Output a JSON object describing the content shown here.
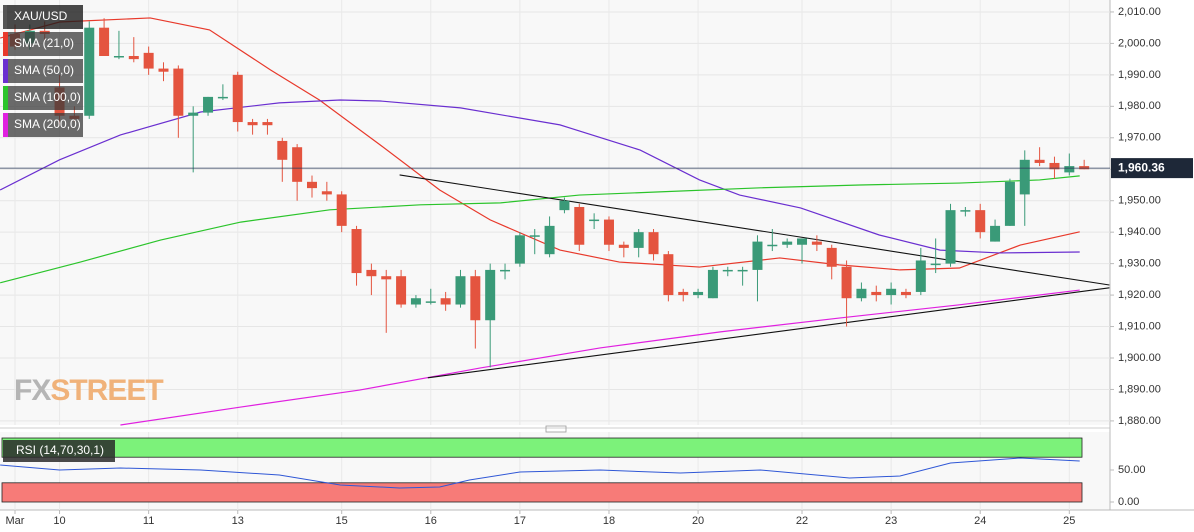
{
  "watermark": [
    "FX",
    "STREET"
  ],
  "chart_data": [
    {
      "type": "candlestick",
      "title": "XAU/USD",
      "x": [
        0,
        1,
        2,
        3,
        4,
        5,
        6,
        7,
        8,
        9,
        10,
        11,
        12,
        13,
        14,
        15,
        16,
        17,
        18,
        19,
        20,
        21,
        22,
        23,
        24,
        25,
        26,
        27,
        28,
        29,
        30,
        31,
        32,
        33,
        34,
        35,
        36,
        37,
        38,
        39,
        40,
        41,
        42,
        43,
        44,
        45,
        46,
        47,
        48,
        49,
        50,
        51,
        52,
        53,
        54,
        55,
        56,
        57,
        58,
        59,
        60,
        61,
        62,
        63,
        64,
        65,
        66,
        67,
        68,
        69,
        70,
        71,
        72
      ],
      "open": [
        2003,
        2000,
        2004,
        1986,
        1977,
        1977,
        2005,
        1996,
        1996,
        1997,
        1992,
        1992,
        1977,
        1978,
        1983,
        1990,
        1975,
        1975,
        1969,
        1967,
        1956,
        1953,
        1952,
        1941,
        1928,
        1926,
        1926,
        1917,
        1918,
        1919,
        1917,
        1926,
        1912,
        1928,
        1930,
        1939,
        1933,
        1947,
        1948,
        1944,
        1944,
        1936,
        1935,
        1940,
        1933,
        1921,
        1920,
        1919,
        1928,
        1928,
        1928,
        1936,
        1936,
        1936,
        1937,
        1935,
        1929,
        1919,
        1921,
        1920,
        1921,
        1921,
        1930,
        1930,
        1947,
        1947,
        1937,
        1942,
        1952,
        1963,
        1962,
        1959,
        1961
      ],
      "high": [
        2006,
        2006,
        2007,
        1990,
        1980,
        2007,
        2008,
        2004,
        2002,
        1999,
        1994,
        1993,
        1980,
        1983,
        1987,
        1991,
        1976,
        1976,
        1970,
        1968,
        1958,
        1956,
        1953,
        1942,
        1930,
        1928,
        1928,
        1920,
        1922,
        1921,
        1928,
        1928,
        1930,
        1930,
        1940,
        1941,
        1945,
        1951,
        1949,
        1946,
        1945,
        1937,
        1941,
        1941,
        1934,
        1922,
        1922,
        1929,
        1929,
        1929,
        1939,
        1941,
        1938,
        1938,
        1939,
        1936,
        1931,
        1924,
        1923,
        1924,
        1922,
        1935,
        1938,
        1949,
        1948,
        1949,
        1944,
        1957,
        1966,
        1967,
        1964,
        1965,
        1963
      ],
      "low": [
        1998,
        1998,
        2001,
        1974,
        1975,
        1976,
        1996,
        1995,
        1994,
        1990,
        1988,
        1970,
        1959,
        1977,
        1982,
        1972,
        1971,
        1971,
        1956,
        1950,
        1951,
        1950,
        1940,
        1923,
        1920,
        1908,
        1916,
        1916,
        1917,
        1915,
        1916,
        1903,
        1897,
        1925,
        1929,
        1933,
        1932,
        1946,
        1934,
        1941,
        1934,
        1932,
        1932,
        1931,
        1918,
        1918,
        1919,
        1919,
        1926,
        1923,
        1918,
        1934,
        1935,
        1930,
        1934,
        1925,
        1910,
        1918,
        1918,
        1917,
        1919,
        1920,
        1927,
        1929,
        1945,
        1938,
        1937,
        1942,
        1942,
        1961,
        1957,
        1958,
        1960
      ],
      "close": [
        1999,
        2004,
        2003,
        1977,
        1976,
        2005,
        1996,
        1996,
        1995,
        1992,
        1991,
        1977,
        1978,
        1983,
        1983,
        1975,
        1974,
        1974,
        1963,
        1956,
        1954,
        1952,
        1942,
        1927,
        1926,
        1925,
        1917,
        1919,
        1918,
        1917,
        1926,
        1912,
        1928,
        1928,
        1939,
        1939,
        1942,
        1950,
        1936,
        1944,
        1936,
        1935,
        1940,
        1933,
        1920,
        1920,
        1921,
        1928,
        1928,
        1928,
        1937,
        1936,
        1937,
        1938,
        1936,
        1929,
        1919,
        1922,
        1920,
        1922,
        1920,
        1931,
        1930,
        1947,
        1947,
        1940,
        1942,
        1956,
        1963,
        1962,
        1960,
        1961,
        1960
      ],
      "up_color": "#3a9a78",
      "down_color": "#e4543f",
      "series": [
        {
          "name": "SMA (21,0)",
          "color": "#e8392b",
          "x": [
            -1,
            3,
            9.1,
            13.1,
            17.2,
            20.5,
            24.6,
            28.6,
            32,
            36.7,
            40.7,
            46.1,
            51.5,
            55.5,
            59.6,
            63.6,
            67.7,
            71.7
          ],
          "values": [
            2001.7,
            2006.8,
            2008.1,
            2004.3,
            1991.6,
            1982.0,
            1967.7,
            1953.4,
            1943.9,
            1934.3,
            1930.5,
            1928.9,
            1931.8,
            1929.6,
            1928.0,
            1928.6,
            1935.9,
            1940.1
          ]
        },
        {
          "name": "SMA (50,0)",
          "color": "#6a2fd0",
          "x": [
            -1,
            3,
            7.1,
            12.5,
            17.8,
            21.9,
            24.6,
            30,
            36.7,
            42.1,
            46.1,
            48.8,
            52.9,
            58.2,
            62.3,
            66.3,
            71.7
          ],
          "values": [
            1953.4,
            1963.0,
            1970.9,
            1978.2,
            1981.1,
            1982.0,
            1981.7,
            1979.5,
            1974.1,
            1966.1,
            1956.6,
            1951.8,
            1947.7,
            1939.1,
            1934.3,
            1933.4,
            1933.7
          ]
        },
        {
          "name": "SMA (100,0)",
          "color": "#2bc42b",
          "x": [
            -1,
            4.4,
            9.8,
            15.2,
            21.2,
            27.3,
            32.7,
            38,
            43.4,
            50.2,
            56.9,
            63.6,
            69,
            71.7
          ],
          "values": [
            1923.9,
            1930.5,
            1937.5,
            1943.2,
            1947.1,
            1948.7,
            1949.3,
            1951.8,
            1952.8,
            1954.1,
            1955.0,
            1955.6,
            1956.6,
            1957.9
          ]
        },
        {
          "name": "SMA (200,0)",
          "color": "#e020e0",
          "x": [
            7.1,
            15.2,
            23.2,
            31.3,
            39.4,
            47.5,
            55.5,
            63.6,
            71.7
          ],
          "values": [
            1878.7,
            1884.4,
            1889.8,
            1896.8,
            1903.2,
            1908.3,
            1912.7,
            1916.9,
            1921.6
          ]
        }
      ],
      "trendlines": [
        {
          "color": "#111111",
          "x": [
            25.9,
            73.7
          ],
          "values": [
            1958.2,
            1923.2
          ]
        },
        {
          "color": "#111111",
          "x": [
            27.8,
            73.7
          ],
          "values": [
            1893.7,
            1922.3
          ]
        }
      ],
      "last_price": {
        "value": 1960.36,
        "label": "1,960.36"
      },
      "ylim": [
        1878.7,
        2013.8
      ],
      "yticks": [
        {
          "value": 1880,
          "label": "1,880.00"
        },
        {
          "value": 1890,
          "label": "1,890.00"
        },
        {
          "value": 1900,
          "label": "1,900.00"
        },
        {
          "value": 1910,
          "label": "1,910.00"
        },
        {
          "value": 1920,
          "label": "1,920.00"
        },
        {
          "value": 1930,
          "label": "1,930.00"
        },
        {
          "value": 1940,
          "label": "1,940.00"
        },
        {
          "value": 1950,
          "label": "1,950.00"
        },
        {
          "value": 1960,
          "label": "1,960.00"
        },
        {
          "value": 1970,
          "label": "1,970.00"
        },
        {
          "value": 1980,
          "label": "1,980.00"
        },
        {
          "value": 1990,
          "label": "1,990.00"
        },
        {
          "value": 2000,
          "label": "2,000.00"
        },
        {
          "value": 2010,
          "label": "2,010.00"
        }
      ],
      "xlim": [
        -1.01,
        73.74
      ],
      "xticks": [
        {
          "value": 0,
          "label": "Mar"
        },
        {
          "value": 3,
          "label": "10"
        },
        {
          "value": 9,
          "label": "11"
        },
        {
          "value": 15,
          "label": "13"
        },
        {
          "value": 22,
          "label": "15"
        },
        {
          "value": 28,
          "label": "16"
        },
        {
          "value": 34,
          "label": "17"
        },
        {
          "value": 40,
          "label": "18"
        },
        {
          "value": 46,
          "label": "20"
        },
        {
          "value": 53,
          "label": "22"
        },
        {
          "value": 59,
          "label": "23"
        },
        {
          "value": 65,
          "label": "24"
        },
        {
          "value": 71,
          "label": "25"
        }
      ],
      "grid": true
    },
    {
      "type": "line",
      "title": "RSI (14,70,30,1)",
      "series": [
        {
          "color": "#2f57d6",
          "x": [
            -1,
            3,
            7.1,
            12.5,
            17.8,
            21.9,
            25.9,
            28.6,
            30.6,
            34,
            39.4,
            44.8,
            50.2,
            56.2,
            59.6,
            63,
            67.7,
            71.7
          ],
          "values": [
            57.8,
            50,
            53.1,
            50,
            42.2,
            26.6,
            21.9,
            23.4,
            34.4,
            46.9,
            50,
            45.3,
            50,
            37.5,
            40.6,
            60.9,
            68.8,
            64.1
          ]
        }
      ],
      "bands": [
        {
          "range": [
            70,
            100
          ],
          "color": "#7cf27a"
        },
        {
          "range": [
            0,
            30
          ],
          "color": "#f77b78"
        }
      ],
      "ylim": [
        -12.5,
        109.4
      ],
      "yticks": [
        {
          "value": 0,
          "label": "0.00"
        },
        {
          "value": 50,
          "label": "50.00"
        }
      ]
    }
  ]
}
